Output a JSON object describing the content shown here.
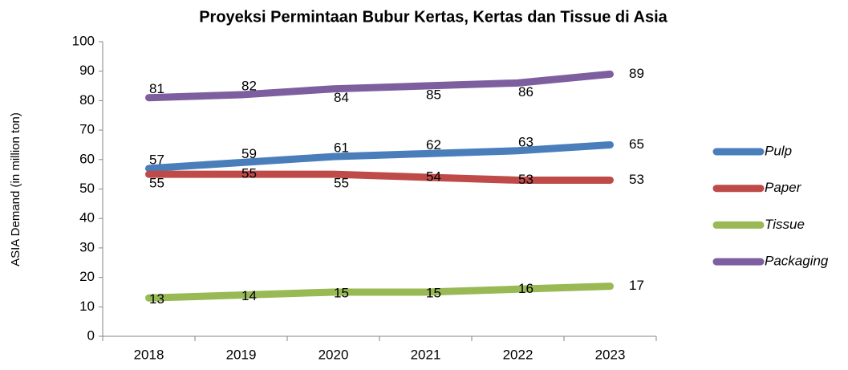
{
  "chart_data": {
    "type": "line",
    "title": "Proyeksi Permintaan Bubur Kertas, Kertas dan Tissue di Asia",
    "y_label": "ASIA Demand (in million ton)",
    "categories": [
      "2018",
      "2019",
      "2020",
      "2021",
      "2022",
      "2023"
    ],
    "series": [
      {
        "name": "Pulp",
        "color": "#4a7ebb",
        "values": [
          57,
          59,
          61,
          62,
          63,
          65
        ]
      },
      {
        "name": "Paper",
        "color": "#be4b48",
        "values": [
          55,
          55,
          55,
          54,
          53,
          53
        ]
      },
      {
        "name": "Tissue",
        "color": "#98b954",
        "values": [
          13,
          14,
          15,
          15,
          16,
          17
        ]
      },
      {
        "name": "Packaging",
        "color": "#7d5fa0",
        "values": [
          81,
          82,
          84,
          85,
          86,
          89
        ]
      }
    ],
    "ylim": [
      0,
      100
    ],
    "yticks": [
      0,
      10,
      20,
      30,
      40,
      50,
      60,
      70,
      80,
      90,
      100
    ],
    "legend": "right"
  }
}
